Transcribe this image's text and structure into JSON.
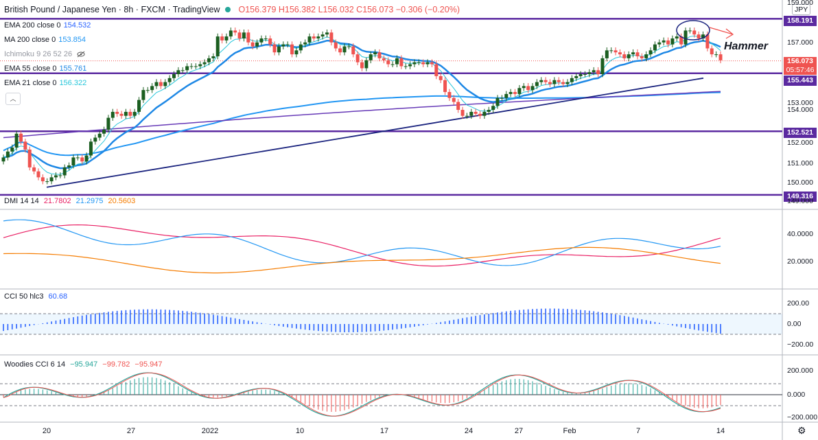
{
  "header": {
    "symbol": "British Pound / Japanese Yen · 8h · FXCM · TradingView",
    "ohlc": "O156.379 H156.382 L156.032 C156.073 −0.306 (−0.20%)",
    "currency": "JPY"
  },
  "legend": {
    "ema200": {
      "label": "EMA 200 close 0",
      "value": "154.532",
      "color": "#2962ff"
    },
    "ma200": {
      "label": "MA 200 close 0",
      "value": "153.854",
      "color": "#2196f3"
    },
    "ichimoku": {
      "label": "Ichimoku 9 26 52 26"
    },
    "ema55": {
      "label": "EMA 55 close 0",
      "value": "155.761",
      "color": "#1e88e5"
    },
    "ema21": {
      "label": "EMA 21 close 0",
      "value": "156.322",
      "color": "#26c6da"
    }
  },
  "annotation": "Hammer",
  "price_tags": {
    "top": "158.191",
    "current": "156.073",
    "countdown": "05:57:46",
    "upper_support": "155.443",
    "mid_support": "152.521",
    "bottom": "149.316"
  },
  "panes": {
    "dmi": {
      "label": "DMI 14 14",
      "v1": "21.7802",
      "v2": "21.2975",
      "v3": "20.5603"
    },
    "cci": {
      "label": "CCI 50 hlc3",
      "v1": "60.68"
    },
    "woodies": {
      "label": "Woodies CCI 6 14",
      "v1": "−95.947",
      "v2": "−99.782",
      "v3": "−95.947"
    }
  },
  "colors": {
    "up": "#1b5e20",
    "down": "#ef5350",
    "horizontal_line": "#5b2aa0",
    "trendline": "#1a237e",
    "dmi_plus": "#2196f3",
    "dmi_minus": "#e91e63",
    "adx": "#f57c00",
    "cci": "#2962ff"
  },
  "chart_data": [
    {
      "type": "candlestick",
      "ylim": [
        149.0,
        159.0
      ],
      "y_ticks": [
        "159.000",
        "157.000",
        "156.000",
        "155.000",
        "154.000",
        "153.000",
        "152.000",
        "151.000",
        "150.000",
        "149.000"
      ],
      "x_ticks": [
        "20",
        "27",
        "2022",
        "10",
        "17",
        "24",
        "27",
        "Feb",
        "7",
        "14"
      ],
      "horizontal_levels": [
        158.191,
        155.443,
        152.521,
        149.316
      ],
      "candles_close": [
        151.2,
        151.5,
        151.7,
        152.4,
        152.0,
        151.6,
        150.7,
        150.5,
        150.2,
        150.0,
        150.0,
        150.2,
        150.3,
        150.3,
        150.7,
        150.8,
        151.2,
        151.2,
        151.0,
        151.3,
        152.0,
        152.2,
        152.4,
        152.6,
        153.2,
        153.5,
        153.4,
        153.3,
        153.5,
        153.3,
        153.5,
        154.1,
        154.6,
        154.6,
        154.8,
        155.0,
        154.8,
        155.0,
        155.2,
        155.4,
        155.6,
        155.6,
        155.8,
        155.8,
        155.8,
        155.9,
        156.0,
        156.2,
        156.3,
        157.3,
        157.1,
        157.3,
        157.6,
        157.5,
        157.2,
        157.5,
        157.0,
        156.8,
        157.0,
        157.2,
        157.2,
        156.9,
        156.5,
        156.8,
        156.9,
        156.9,
        156.4,
        156.6,
        156.9,
        157.0,
        157.3,
        157.2,
        157.3,
        157.4,
        157.5,
        157.0,
        156.7,
        156.5,
        156.8,
        156.8,
        156.4,
        156.0,
        155.7,
        156.1,
        156.4,
        156.5,
        156.2,
        156.1,
        155.9,
        155.9,
        156.2,
        155.8,
        155.8,
        155.9,
        156.0,
        156.0,
        155.9,
        156.0,
        155.9,
        155.3,
        155.1,
        154.5,
        154.2,
        154.0,
        153.6,
        153.3,
        153.3,
        153.5,
        153.4,
        153.3,
        153.5,
        153.6,
        153.8,
        154.2,
        154.2,
        154.4,
        154.5,
        154.4,
        154.7,
        154.8,
        154.6,
        154.8,
        155.0,
        155.1,
        155.0,
        154.9,
        155.1,
        155.0,
        154.9,
        155.0,
        155.2,
        155.3,
        155.4,
        155.4,
        155.5,
        155.6,
        155.4,
        156.2,
        156.6,
        156.6,
        156.5,
        156.4,
        156.2,
        156.4,
        156.5,
        156.3,
        156.2,
        156.4,
        156.6,
        156.9,
        157.0,
        157.1,
        156.9,
        157.2,
        157.3,
        156.9,
        157.6,
        157.6,
        157.4,
        157.2,
        157.4,
        156.7,
        156.4,
        156.4,
        156.1
      ]
    },
    {
      "type": "line",
      "name": "DMI",
      "ylim": [
        0,
        60
      ],
      "y_ticks": [
        "40.0000",
        "20.0000"
      ]
    },
    {
      "type": "bar",
      "name": "CCI",
      "ylim": [
        -250,
        250
      ],
      "y_ticks": [
        "200.00",
        "0.00",
        "−200.00"
      ]
    },
    {
      "type": "bar",
      "name": "Woodies CCI",
      "ylim": [
        -250,
        250
      ],
      "y_ticks": [
        "200.000",
        "0.000",
        "−200.000"
      ]
    }
  ]
}
